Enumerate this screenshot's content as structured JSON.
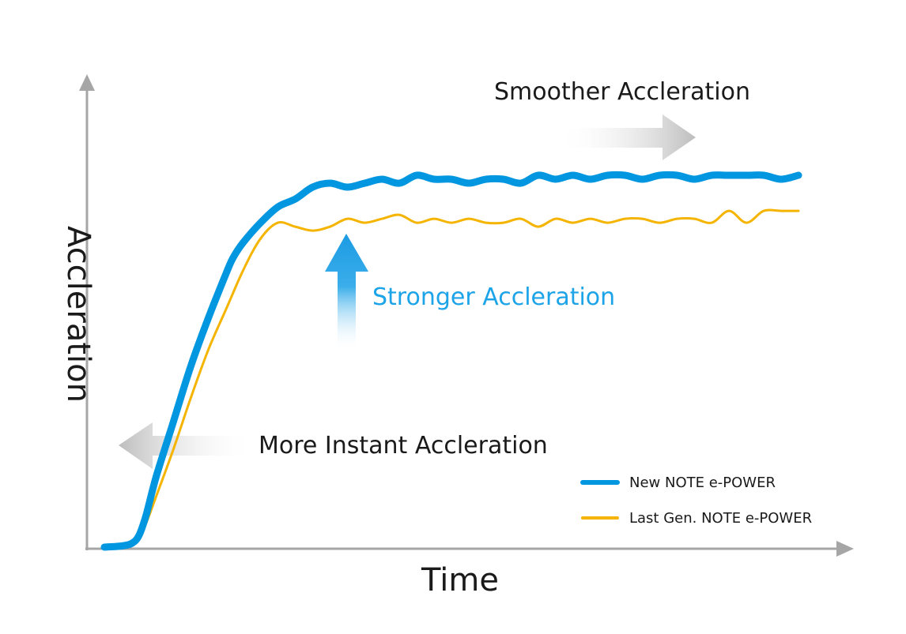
{
  "chart_data": {
    "type": "line",
    "title": "",
    "xlabel": "Time",
    "ylabel": "Accleration",
    "grid": false,
    "legend_position": "bottom-right",
    "series": [
      {
        "name": "New NOTE e-POWER",
        "color": "#0096E0",
        "points": [
          [
            0,
            0
          ],
          [
            5,
            0.3
          ],
          [
            8,
            1
          ],
          [
            10,
            3
          ],
          [
            12,
            8
          ],
          [
            15,
            18
          ],
          [
            20,
            32
          ],
          [
            25,
            46
          ],
          [
            30,
            58
          ],
          [
            35,
            69
          ],
          [
            37,
            73
          ],
          [
            40,
            77
          ],
          [
            45,
            82
          ],
          [
            50,
            86
          ],
          [
            55,
            88
          ],
          [
            60,
            91
          ],
          [
            65,
            92
          ],
          [
            70,
            91
          ],
          [
            75,
            92
          ],
          [
            80,
            93
          ],
          [
            85,
            92
          ],
          [
            90,
            94
          ],
          [
            95,
            93
          ],
          [
            100,
            93
          ],
          [
            105,
            92
          ],
          [
            110,
            93
          ],
          [
            115,
            93
          ],
          [
            120,
            92
          ],
          [
            125,
            94
          ],
          [
            130,
            93
          ],
          [
            135,
            94
          ],
          [
            140,
            93
          ],
          [
            145,
            94
          ],
          [
            150,
            94
          ],
          [
            155,
            93
          ],
          [
            160,
            94
          ],
          [
            165,
            94
          ],
          [
            170,
            93
          ],
          [
            175,
            94
          ],
          [
            180,
            94
          ],
          [
            185,
            94
          ],
          [
            190,
            94
          ],
          [
            195,
            93
          ],
          [
            200,
            94
          ]
        ]
      },
      {
        "name": "Last Gen. NOTE e-POWER",
        "color": "#F4B400",
        "points": [
          [
            0,
            0
          ],
          [
            5,
            0.3
          ],
          [
            8,
            1
          ],
          [
            10,
            3
          ],
          [
            12,
            6
          ],
          [
            15,
            13
          ],
          [
            20,
            25
          ],
          [
            25,
            38
          ],
          [
            30,
            50
          ],
          [
            35,
            60
          ],
          [
            40,
            70
          ],
          [
            45,
            78
          ],
          [
            50,
            82
          ],
          [
            55,
            81
          ],
          [
            60,
            80
          ],
          [
            65,
            81
          ],
          [
            70,
            83
          ],
          [
            75,
            82
          ],
          [
            80,
            83
          ],
          [
            85,
            84
          ],
          [
            90,
            82
          ],
          [
            95,
            83
          ],
          [
            100,
            82
          ],
          [
            105,
            83
          ],
          [
            110,
            82
          ],
          [
            115,
            82
          ],
          [
            120,
            83
          ],
          [
            125,
            81
          ],
          [
            130,
            83
          ],
          [
            135,
            82
          ],
          [
            140,
            83
          ],
          [
            145,
            82
          ],
          [
            150,
            83
          ],
          [
            155,
            83
          ],
          [
            160,
            82
          ],
          [
            165,
            83
          ],
          [
            170,
            83
          ],
          [
            175,
            82
          ],
          [
            180,
            85
          ],
          [
            185,
            82
          ],
          [
            190,
            85
          ],
          [
            195,
            85
          ],
          [
            200,
            85
          ]
        ]
      }
    ],
    "annotations": [
      {
        "text": "Smoother Accleration",
        "color": "#1a1a1a"
      },
      {
        "text": "Stronger Accleration",
        "color": "#1CA3E8"
      },
      {
        "text": "More Instant Accleration",
        "color": "#1a1a1a"
      }
    ]
  },
  "colors": {
    "axis": "#A6A6A6",
    "text": "#1a1a1a",
    "accent_blue": "#0096E0",
    "accent_yellow": "#F4B400",
    "arrow_gray": "#C8C8C8"
  }
}
